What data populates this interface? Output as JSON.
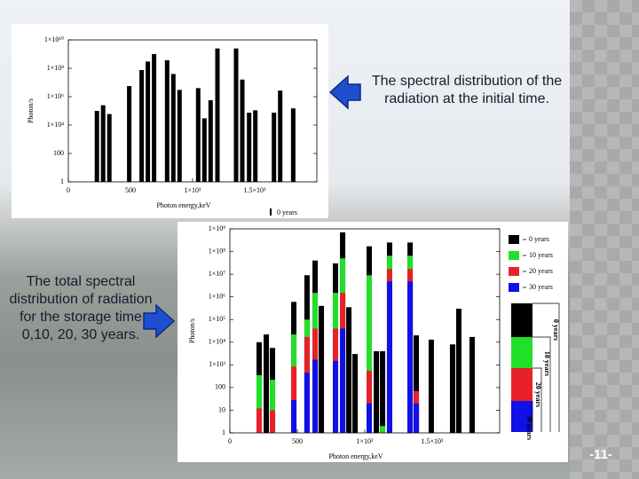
{
  "slide": {
    "text_top": "The spectral distribution of the radiation at the initial time.",
    "text_left": "The total spectral distribution of radiation for the storage time 0,10, 20, 30 years.",
    "page_number": "-11-"
  },
  "chart_data": [
    {
      "type": "bar",
      "x_label": "Photon energy,keV",
      "y_label": "Photon/s",
      "log_y": true,
      "x": [
        230,
        280,
        330,
        490,
        590,
        640,
        690,
        795,
        845,
        895,
        1045,
        1095,
        1145,
        1200,
        1350,
        1400,
        1455,
        1505,
        1655,
        1705,
        1810
      ],
      "series": [
        {
          "name": "0 years",
          "color": "#000000",
          "values": [
            100000,
            250000,
            60000,
            5600000,
            75000000,
            300000000,
            1000000000,
            370000000,
            40000000,
            3000000,
            4000000,
            30000,
            560000,
            2500000000,
            2500000000,
            16000000,
            75000,
            110000,
            75000,
            2700000,
            150000
          ]
        }
      ],
      "xlim": [
        0,
        2000
      ],
      "xticks": [
        0,
        500,
        {
          "value": 1000,
          "label": "1×10³"
        },
        {
          "value": 1500,
          "label": "1.5×10³"
        }
      ],
      "ylim": [
        1,
        10000000000
      ],
      "yticks": [
        1,
        100,
        {
          "value": 10000,
          "label": "1×10⁴"
        },
        {
          "value": 1000000,
          "label": "1×10⁶"
        },
        {
          "value": 100000000,
          "label": "1×10⁸"
        },
        {
          "value": 10000000000,
          "label": "1×10¹⁰"
        }
      ]
    },
    {
      "type": "bar",
      "x_label": "Photon energy,keV",
      "y_label": "Photon/s",
      "log_y": true,
      "x": [
        217,
        270,
        316,
        474,
        572,
        632,
        678,
        783,
        836,
        882,
        928,
        1033,
        1086,
        1132,
        1184,
        1336,
        1382,
        1493,
        1651,
        1697,
        1796
      ],
      "series": [
        {
          "name": "0 years",
          "color": "#000000",
          "values": [
            10000,
            22000,
            5600,
            600000,
            9000000,
            40000000,
            400000,
            30000000,
            700000000,
            350000,
            3000,
            170000000,
            4000,
            4000,
            250000000,
            250000000,
            20000,
            13000,
            8000,
            300000,
            17000
          ]
        },
        {
          "name": "10 years",
          "color": "#22e02a",
          "values": [
            350,
            null,
            220,
            22000,
            100000,
            1500000,
            null,
            1500000,
            50000000,
            null,
            null,
            9000000,
            null,
            2,
            65000000,
            65000000,
            null,
            null,
            null,
            null,
            null
          ]
        },
        {
          "name": "20 years",
          "color": "#e8202a",
          "values": [
            12,
            null,
            10,
            850,
            17000,
            40000,
            null,
            40000,
            1500000,
            null,
            null,
            550,
            null,
            null,
            17000000,
            17000000,
            70,
            null,
            null,
            null,
            null
          ]
        },
        {
          "name": "30 years",
          "color": "#1010e8",
          "values": [
            null,
            null,
            null,
            28,
            450,
            1700,
            null,
            1500,
            40000,
            null,
            null,
            20,
            null,
            null,
            4800000,
            4800000,
            20,
            null,
            null,
            null,
            null
          ]
        }
      ],
      "xlim": [
        0,
        2000
      ],
      "xticks": [
        0,
        500,
        {
          "value": 1000,
          "label": "1×10³"
        },
        {
          "value": 1500,
          "label": "1.5×10³"
        }
      ],
      "ylim": [
        1,
        1000000000
      ],
      "yticks": [
        1,
        10,
        100,
        {
          "value": 1000,
          "label": "1×10³"
        },
        {
          "value": 10000,
          "label": "1×10⁴"
        },
        {
          "value": 100000,
          "label": "1×10⁵"
        },
        {
          "value": 1000000,
          "label": "1×10⁶"
        },
        {
          "value": 10000000,
          "label": "1×10⁷"
        },
        {
          "value": 100000000,
          "label": "1×10⁸"
        },
        {
          "value": 1000000000,
          "label": "1×10⁹"
        }
      ]
    }
  ]
}
